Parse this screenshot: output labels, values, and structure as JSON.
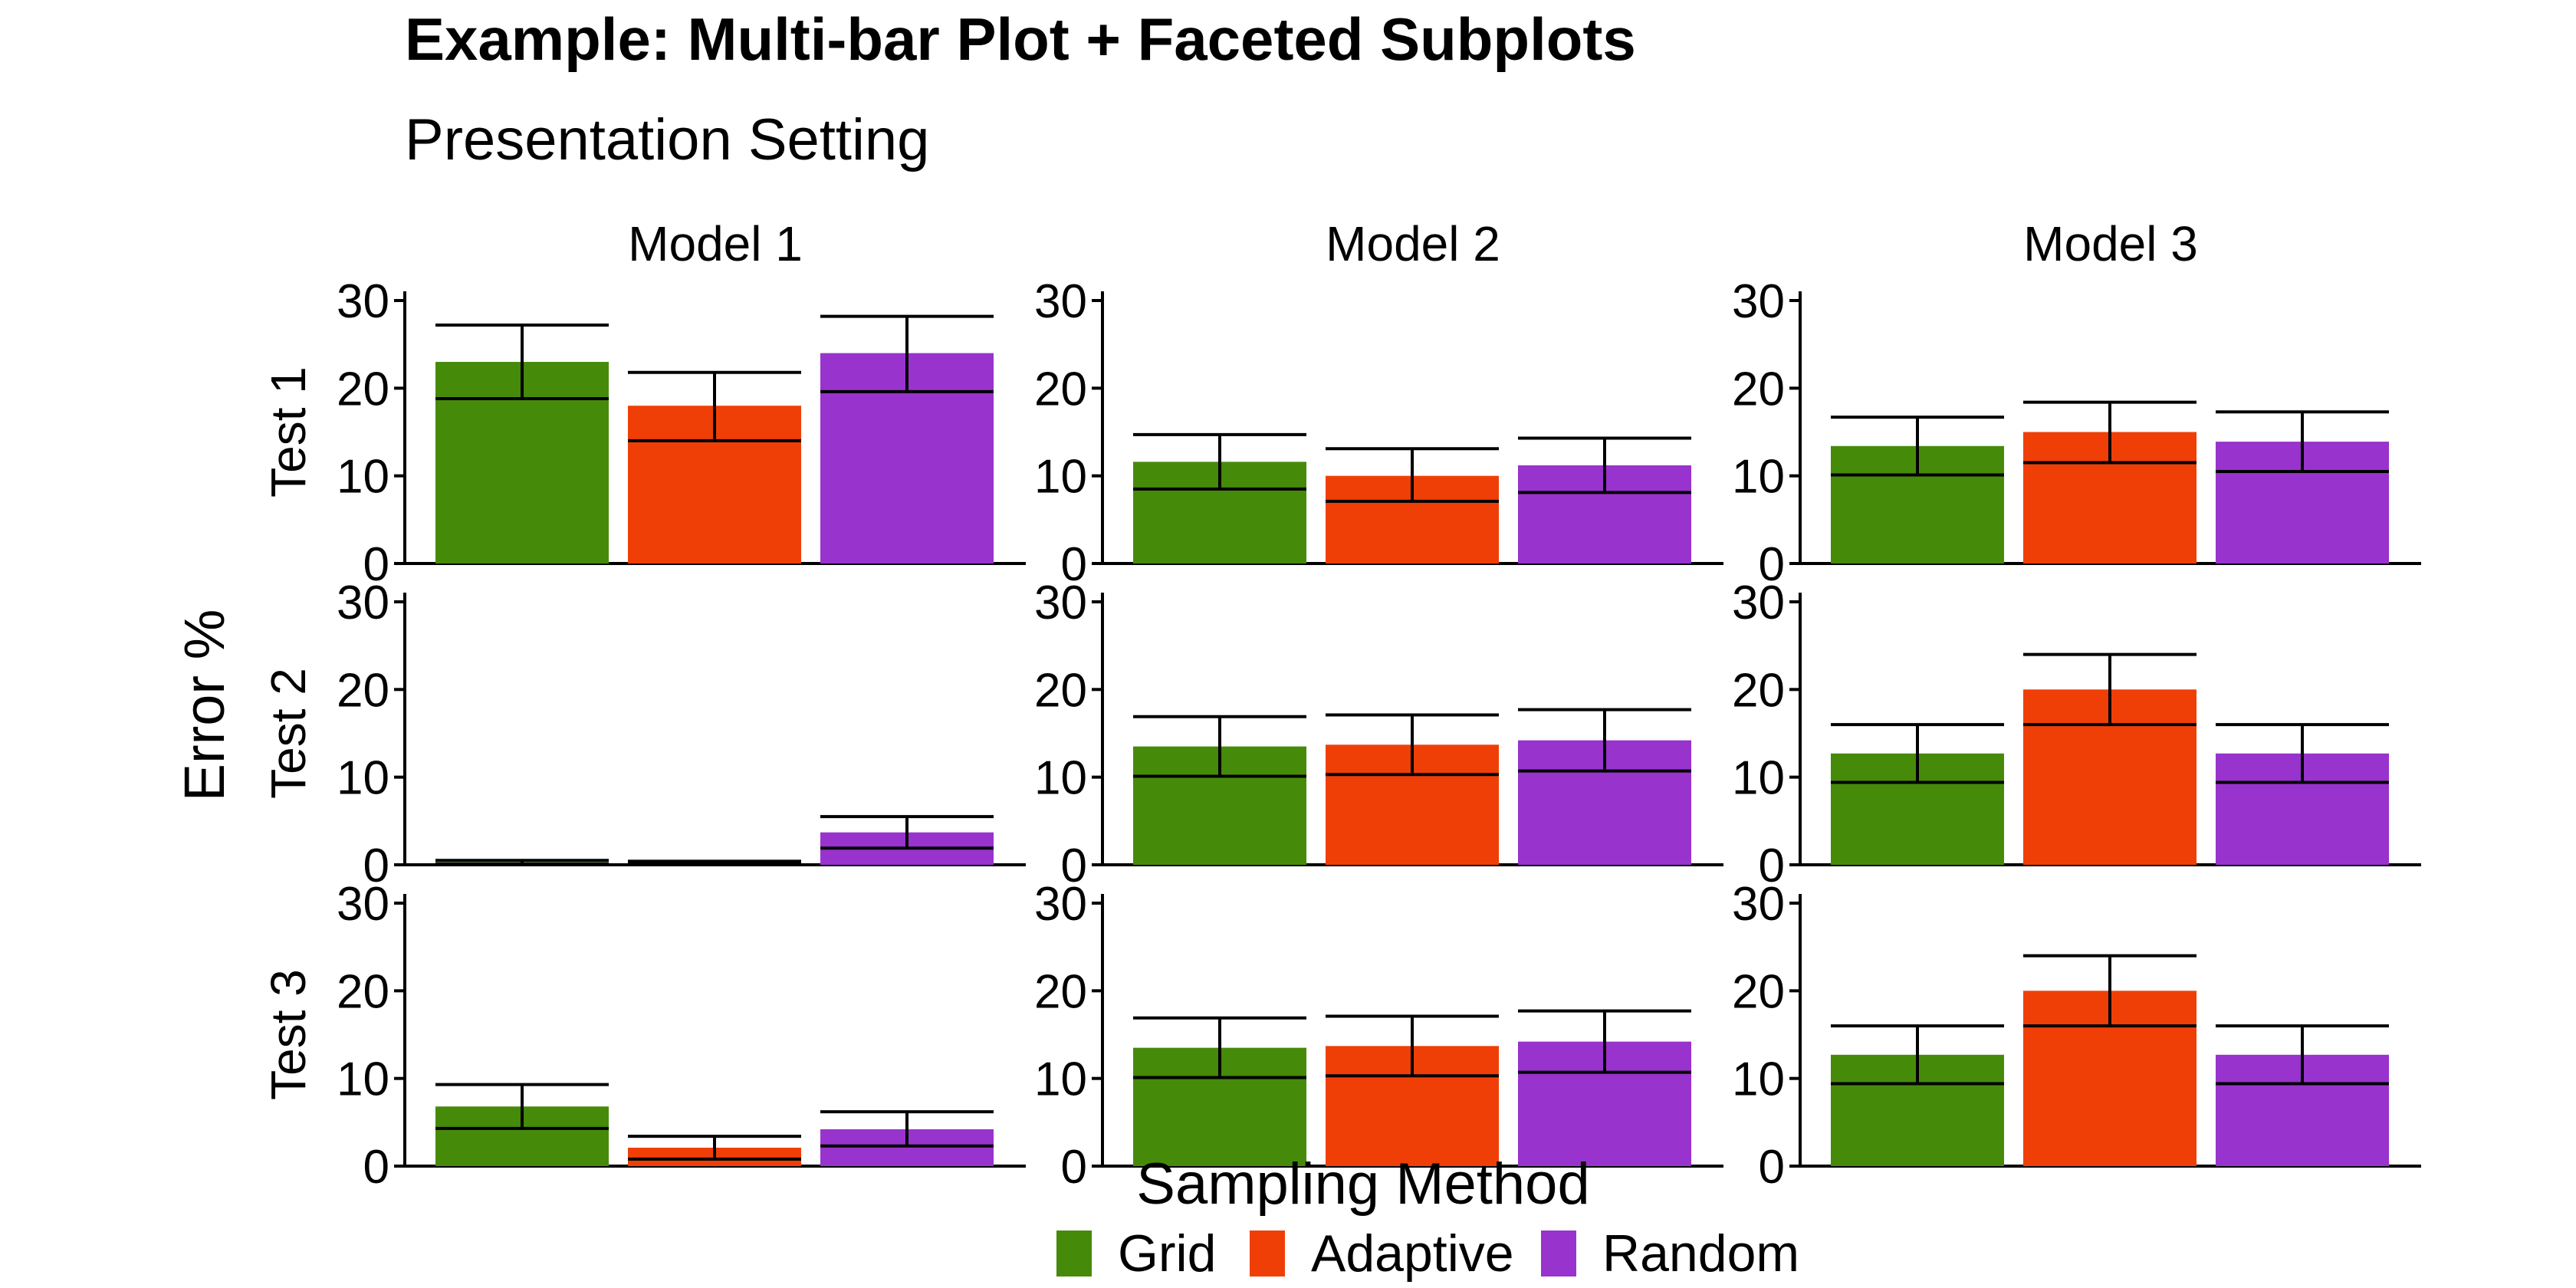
{
  "chart_data": {
    "type": "bar",
    "title": "Example: Multi-bar Plot + Faceted Subplots",
    "subtitle": "Presentation Setting",
    "ylabel": "Error %",
    "ylim": [
      0,
      30
    ],
    "yticks": [
      0,
      10,
      20,
      30
    ],
    "facet_cols": [
      "Model 1",
      "Model 2",
      "Model 3"
    ],
    "facet_rows": [
      "Test 1",
      "Test 2",
      "Test 3"
    ],
    "categories": [
      "Grid",
      "Adaptive",
      "Random"
    ],
    "legend": {
      "title": "Sampling Method",
      "placement": "bottom",
      "items": [
        "Grid",
        "Adaptive",
        "Random"
      ]
    },
    "colors": {
      "Grid": "#468a0a",
      "Adaptive": "#ef3f07",
      "Random": "#9833cd"
    },
    "panels": [
      {
        "row": "Test 1",
        "col": "Model 1",
        "values": [
          23,
          18,
          24
        ],
        "err_low": [
          18.8,
          14,
          19.6
        ],
        "err_high": [
          27.2,
          21.8,
          28.2
        ]
      },
      {
        "row": "Test 1",
        "col": "Model 2",
        "values": [
          11.6,
          10,
          11.2
        ],
        "err_low": [
          8.5,
          7.1,
          8.1
        ],
        "err_high": [
          14.7,
          13.1,
          14.3
        ]
      },
      {
        "row": "Test 1",
        "col": "Model 3",
        "values": [
          13.4,
          15,
          13.9
        ],
        "err_low": [
          10.1,
          11.5,
          10.5
        ],
        "err_high": [
          16.7,
          18.4,
          17.3
        ]
      },
      {
        "row": "Test 2",
        "col": "Model 1",
        "values": [
          0.3,
          0.2,
          3.7
        ],
        "err_low": [
          0.1,
          0.1,
          1.9
        ],
        "err_high": [
          0.5,
          0.4,
          5.5
        ]
      },
      {
        "row": "Test 2",
        "col": "Model 2",
        "values": [
          13.5,
          13.7,
          14.2
        ],
        "err_low": [
          10.1,
          10.3,
          10.7
        ],
        "err_high": [
          16.9,
          17.1,
          17.7
        ]
      },
      {
        "row": "Test 2",
        "col": "Model 3",
        "values": [
          12.7,
          20,
          12.7
        ],
        "err_low": [
          9.4,
          16,
          9.4
        ],
        "err_high": [
          16,
          24,
          16
        ]
      },
      {
        "row": "Test 3",
        "col": "Model 1",
        "values": [
          6.8,
          2.1,
          4.2
        ],
        "err_low": [
          4.3,
          0.8,
          2.3
        ],
        "err_high": [
          9.3,
          3.4,
          6.2
        ]
      },
      {
        "row": "Test 3",
        "col": "Model 2",
        "values": [
          13.5,
          13.7,
          14.2
        ],
        "err_low": [
          10.1,
          10.3,
          10.7
        ],
        "err_high": [
          16.9,
          17.1,
          17.7
        ]
      },
      {
        "row": "Test 3",
        "col": "Model 3",
        "values": [
          12.7,
          20,
          12.7
        ],
        "err_low": [
          9.4,
          16,
          9.4
        ],
        "err_high": [
          16,
          24,
          16
        ]
      }
    ]
  }
}
